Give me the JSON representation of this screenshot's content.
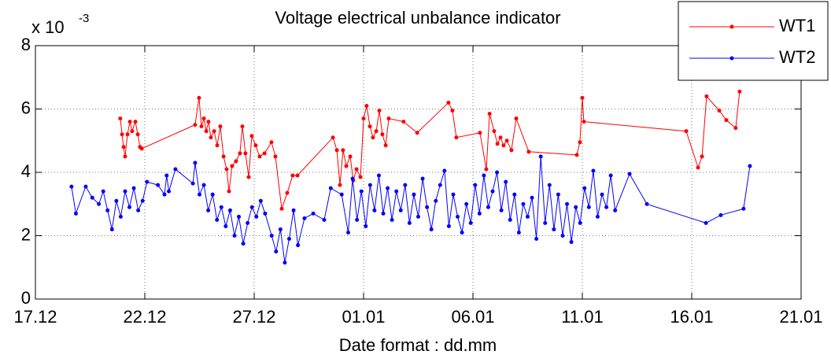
{
  "chart_data": {
    "type": "line",
    "title": "Voltage electrical unbalance indicator",
    "x_label": "Date format : dd.mm",
    "y_scale_label": "x 10",
    "y_scale_exponent": "-3",
    "xlim": [
      0,
      35
    ],
    "xticks": [
      {
        "value": 0,
        "label": "17.12"
      },
      {
        "value": 5,
        "label": "22.12"
      },
      {
        "value": 10,
        "label": "27.12"
      },
      {
        "value": 15,
        "label": "01.01"
      },
      {
        "value": 20,
        "label": "06.01"
      },
      {
        "value": 25,
        "label": "11.01"
      },
      {
        "value": 30,
        "label": "16.01"
      },
      {
        "value": 35,
        "label": "21.01"
      }
    ],
    "ylim": [
      0,
      8
    ],
    "yticks": [
      0,
      2,
      4,
      6,
      8
    ],
    "grid": true,
    "legend": "top-right",
    "series": [
      {
        "name": "WT1",
        "color": "#ff0000",
        "x": [
          3.88,
          3.96,
          4.03,
          4.1,
          4.21,
          4.32,
          4.42,
          4.57,
          4.68,
          4.78,
          4.86,
          7.3,
          7.48,
          7.59,
          7.7,
          7.81,
          7.91,
          8.02,
          8.17,
          8.31,
          8.45,
          8.6,
          8.74,
          8.85,
          8.99,
          9.17,
          9.35,
          9.46,
          9.6,
          9.75,
          9.89,
          10.07,
          10.25,
          10.47,
          10.79,
          10.97,
          11.26,
          11.51,
          11.76,
          11.98,
          13.6,
          13.78,
          13.92,
          14.06,
          14.21,
          14.39,
          14.53,
          14.68,
          14.86,
          15.0,
          15.14,
          15.29,
          15.43,
          15.58,
          15.72,
          15.86,
          16.01,
          16.15,
          16.83,
          17.45,
          18.88,
          19.06,
          19.24,
          20.32,
          20.61,
          20.76,
          20.97,
          21.12,
          21.26,
          21.4,
          21.55,
          21.76,
          21.98,
          22.55,
          24.75,
          24.89,
          25.0,
          25.07,
          29.75,
          30.29,
          30.47,
          30.68,
          31.26,
          31.58,
          32.01,
          32.19
        ],
        "values": [
          5.7,
          5.2,
          4.8,
          4.5,
          5.2,
          5.6,
          5.3,
          5.6,
          5.2,
          4.8,
          4.75,
          5.5,
          6.35,
          5.45,
          5.7,
          5.3,
          5.6,
          5.1,
          5.3,
          4.85,
          5.45,
          4.5,
          4.1,
          3.4,
          4.2,
          4.35,
          4.6,
          5.45,
          4.6,
          3.85,
          5.15,
          4.85,
          4.5,
          4.6,
          4.95,
          4.5,
          2.85,
          3.35,
          3.9,
          3.9,
          5.1,
          4.7,
          3.6,
          4.7,
          4.2,
          4.5,
          3.75,
          4.1,
          3.85,
          5.7,
          6.1,
          5.45,
          5.1,
          5.3,
          5.95,
          5.2,
          4.85,
          5.7,
          5.6,
          5.25,
          6.2,
          5.95,
          5.1,
          5.25,
          4.1,
          5.85,
          5.3,
          4.9,
          5.1,
          4.85,
          5.0,
          4.7,
          5.7,
          4.65,
          4.55,
          4.95,
          6.35,
          5.6,
          5.3,
          4.15,
          4.5,
          6.4,
          5.95,
          5.65,
          5.4,
          6.55
        ]
      },
      {
        "name": "WT2",
        "color": "#0000ff",
        "x": [
          1.65,
          1.85,
          2.3,
          2.6,
          2.9,
          3.1,
          3.3,
          3.5,
          3.7,
          3.9,
          4.1,
          4.3,
          4.5,
          4.7,
          4.9,
          5.1,
          5.6,
          5.9,
          6.0,
          6.1,
          6.4,
          7.2,
          7.3,
          7.5,
          7.7,
          7.9,
          8.1,
          8.3,
          8.5,
          8.7,
          8.9,
          9.1,
          9.3,
          9.5,
          9.7,
          9.9,
          10.1,
          10.3,
          10.5,
          10.8,
          11.0,
          11.2,
          11.4,
          11.6,
          11.8,
          12.0,
          12.3,
          12.7,
          13.2,
          13.5,
          14.0,
          14.3,
          14.5,
          14.7,
          14.9,
          15.1,
          15.3,
          15.5,
          15.7,
          15.9,
          16.1,
          16.3,
          16.5,
          16.7,
          16.9,
          17.1,
          17.3,
          17.5,
          17.7,
          17.9,
          18.1,
          18.3,
          18.5,
          18.7,
          18.9,
          19.1,
          19.3,
          19.5,
          19.7,
          19.9,
          20.1,
          20.3,
          20.5,
          20.7,
          20.9,
          21.1,
          21.3,
          21.5,
          21.7,
          21.9,
          22.1,
          22.3,
          22.5,
          22.7,
          22.9,
          23.1,
          23.3,
          23.5,
          23.7,
          23.9,
          24.1,
          24.3,
          24.5,
          24.7,
          24.9,
          25.1,
          25.3,
          25.5,
          25.7,
          25.9,
          26.1,
          26.3,
          26.5,
          27.16,
          27.95,
          30.65,
          31.33,
          32.37,
          32.66
        ],
        "values": [
          3.55,
          2.7,
          3.55,
          3.2,
          3.0,
          3.4,
          2.8,
          2.2,
          3.1,
          2.6,
          3.4,
          2.9,
          3.5,
          2.8,
          3.1,
          3.7,
          3.6,
          3.3,
          3.9,
          3.4,
          4.1,
          3.65,
          4.3,
          3.3,
          3.6,
          2.8,
          3.3,
          2.5,
          2.9,
          2.3,
          2.8,
          2.0,
          2.6,
          1.75,
          2.4,
          2.9,
          2.6,
          3.1,
          2.7,
          2.0,
          1.5,
          2.2,
          1.15,
          1.9,
          2.8,
          1.7,
          2.55,
          2.7,
          2.5,
          3.5,
          3.3,
          2.1,
          3.8,
          2.5,
          3.4,
          2.3,
          3.6,
          2.8,
          3.9,
          2.7,
          3.5,
          2.5,
          3.4,
          2.8,
          3.6,
          2.4,
          3.3,
          2.6,
          3.8,
          2.9,
          2.2,
          3.1,
          3.6,
          4.05,
          2.3,
          3.3,
          2.6,
          2.1,
          3.0,
          2.4,
          3.6,
          2.7,
          3.9,
          2.9,
          3.4,
          4.0,
          2.8,
          3.7,
          2.5,
          3.3,
          2.1,
          3.0,
          2.6,
          3.2,
          1.9,
          4.5,
          2.4,
          3.6,
          2.2,
          3.3,
          2.0,
          3.0,
          1.8,
          2.9,
          2.4,
          3.5,
          2.9,
          4.05,
          2.6,
          3.3,
          2.9,
          3.9,
          2.8,
          3.95,
          3.0,
          2.4,
          2.65,
          2.85,
          4.2
        ]
      }
    ]
  }
}
